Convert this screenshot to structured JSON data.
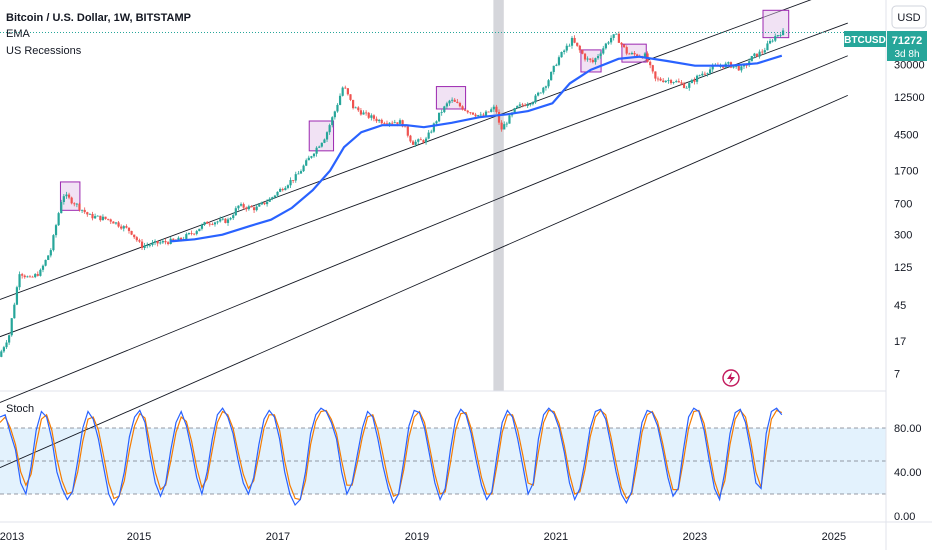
{
  "header": {
    "title": "Bitcoin / U.S. Dollar, 1W, BITSTAMP",
    "indicator_1": "EMA",
    "indicator_2": "US Recessions"
  },
  "price_axis": {
    "currency_button": "USD",
    "symbol_badge": "BTCUSD",
    "last_price": "71272",
    "countdown": "3d 8h",
    "colors": {
      "badge": "#26a69a",
      "ema": "#2962ff",
      "channel": "#131722"
    }
  },
  "oscillator": {
    "label": "Stoch",
    "ticks": [
      "80.00",
      "40.00",
      "0.00"
    ],
    "colors": {
      "k": "#2962ff",
      "d": "#f57c00",
      "band": "#e3f2fd"
    }
  },
  "chart_data": {
    "type": "candlestick",
    "y_scale": "log",
    "price_ticks": [
      30000,
      12500,
      4500,
      1700,
      700,
      300,
      125,
      45,
      17,
      7
    ],
    "x_ticks": [
      "2013",
      "2015",
      "2017",
      "2019",
      "2021",
      "2023",
      "2025"
    ],
    "ylim": [
      5,
      150000
    ],
    "xlim": [
      2013.0,
      2025.75
    ],
    "last_price": 71272,
    "recession_shading": [
      2020.1,
      2020.25
    ],
    "stoch": {
      "range": [
        0,
        100
      ],
      "upper_band": 80,
      "middle": 50,
      "lower_band": 20
    },
    "price_path": [
      [
        2013.0,
        11
      ],
      [
        2013.15,
        20
      ],
      [
        2013.3,
        110
      ],
      [
        2013.45,
        90
      ],
      [
        2013.6,
        110
      ],
      [
        2013.75,
        200
      ],
      [
        2013.92,
        900
      ],
      [
        2014.1,
        700
      ],
      [
        2014.3,
        500
      ],
      [
        2014.6,
        450
      ],
      [
        2014.9,
        330
      ],
      [
        2015.05,
        220
      ],
      [
        2015.3,
        240
      ],
      [
        2015.6,
        260
      ],
      [
        2015.8,
        320
      ],
      [
        2016.0,
        420
      ],
      [
        2016.3,
        440
      ],
      [
        2016.45,
        650
      ],
      [
        2016.7,
        610
      ],
      [
        2016.9,
        780
      ],
      [
        2017.1,
        1100
      ],
      [
        2017.3,
        1500
      ],
      [
        2017.5,
        2600
      ],
      [
        2017.7,
        4300
      ],
      [
        2017.85,
        9000
      ],
      [
        2017.96,
        17000
      ],
      [
        2018.1,
        9500
      ],
      [
        2018.3,
        7500
      ],
      [
        2018.5,
        6500
      ],
      [
        2018.8,
        6300
      ],
      [
        2018.95,
        3600
      ],
      [
        2019.15,
        3900
      ],
      [
        2019.35,
        8000
      ],
      [
        2019.5,
        11500
      ],
      [
        2019.7,
        9000
      ],
      [
        2019.95,
        7300
      ],
      [
        2020.15,
        9500
      ],
      [
        2020.22,
        5000
      ],
      [
        2020.45,
        9300
      ],
      [
        2020.7,
        11500
      ],
      [
        2020.9,
        19000
      ],
      [
        2021.05,
        35000
      ],
      [
        2021.25,
        58000
      ],
      [
        2021.45,
        35000
      ],
      [
        2021.55,
        32000
      ],
      [
        2021.8,
        61000
      ],
      [
        2021.88,
        66000
      ],
      [
        2022.05,
        40000
      ],
      [
        2022.3,
        38000
      ],
      [
        2022.45,
        20000
      ],
      [
        2022.7,
        19500
      ],
      [
        2022.9,
        16500
      ],
      [
        2023.1,
        23000
      ],
      [
        2023.3,
        28000
      ],
      [
        2023.5,
        30000
      ],
      [
        2023.7,
        26500
      ],
      [
        2023.85,
        37000
      ],
      [
        2024.0,
        43000
      ],
      [
        2024.15,
        62000
      ],
      [
        2024.25,
        71272
      ]
    ],
    "ema_path": [
      [
        2015.45,
        250
      ],
      [
        2015.8,
        265
      ],
      [
        2016.2,
        300
      ],
      [
        2016.6,
        380
      ],
      [
        2016.9,
        450
      ],
      [
        2017.2,
        620
      ],
      [
        2017.5,
        1000
      ],
      [
        2017.75,
        1700
      ],
      [
        2017.95,
        3200
      ],
      [
        2018.2,
        4800
      ],
      [
        2018.5,
        5800
      ],
      [
        2018.85,
        5800
      ],
      [
        2019.1,
        5500
      ],
      [
        2019.5,
        6200
      ],
      [
        2019.9,
        7200
      ],
      [
        2020.3,
        7800
      ],
      [
        2020.6,
        8500
      ],
      [
        2020.95,
        10500
      ],
      [
        2021.2,
        18000
      ],
      [
        2021.5,
        26000
      ],
      [
        2021.9,
        35000
      ],
      [
        2022.2,
        37000
      ],
      [
        2022.6,
        33000
      ],
      [
        2023.0,
        29000
      ],
      [
        2023.5,
        29000
      ],
      [
        2023.9,
        31000
      ],
      [
        2024.25,
        38000
      ]
    ],
    "channel_lines": [
      [
        [
          2013.0,
          52
        ],
        [
          2025.2,
          250000
        ]
      ],
      [
        [
          2013.0,
          19
        ],
        [
          2025.2,
          92000
        ]
      ],
      [
        [
          2013.0,
          3.2
        ],
        [
          2025.2,
          38000
        ]
      ],
      [
        [
          2013.0,
          0.55
        ],
        [
          2025.2,
          13000
        ]
      ]
    ],
    "highlight_boxes": [
      [
        2013.87,
        2014.15,
        580,
        1250
      ],
      [
        2017.45,
        2017.8,
        2900,
        6500
      ],
      [
        2019.28,
        2019.7,
        9000,
        16500
      ],
      [
        2021.36,
        2021.65,
        24500,
        44500
      ],
      [
        2021.95,
        2022.3,
        32000,
        52000
      ],
      [
        2023.98,
        2024.35,
        62000,
        130000
      ]
    ],
    "stoch_k": [
      90,
      92,
      75,
      60,
      30,
      20,
      45,
      78,
      95,
      90,
      70,
      40,
      25,
      15,
      22,
      50,
      80,
      95,
      88,
      70,
      45,
      20,
      10,
      18,
      40,
      72,
      90,
      96,
      85,
      55,
      30,
      18,
      30,
      60,
      85,
      95,
      82,
      60,
      35,
      20,
      40,
      70,
      92,
      98,
      90,
      75,
      50,
      30,
      20,
      35,
      65,
      88,
      96,
      90,
      70,
      40,
      20,
      10,
      15,
      40,
      75,
      92,
      98,
      95,
      85,
      70,
      40,
      20,
      30,
      55,
      80,
      95,
      90,
      70,
      45,
      25,
      12,
      20,
      50,
      82,
      96,
      94,
      80,
      55,
      30,
      15,
      25,
      60,
      88,
      97,
      92,
      75,
      50,
      28,
      15,
      22,
      55,
      85,
      96,
      90,
      70,
      45,
      20,
      30,
      70,
      92,
      98,
      93,
      80,
      58,
      30,
      15,
      25,
      50,
      80,
      95,
      97,
      88,
      65,
      40,
      20,
      12,
      22,
      55,
      85,
      96,
      94,
      82,
      60,
      35,
      18,
      25,
      60,
      90,
      98,
      95,
      78,
      50,
      25,
      15,
      40,
      75,
      94,
      97,
      85,
      60,
      30,
      25,
      75,
      95,
      98,
      92
    ],
    "stoch_d": [
      85,
      90,
      80,
      65,
      40,
      28,
      38,
      65,
      88,
      92,
      78,
      52,
      32,
      20,
      22,
      40,
      68,
      88,
      90,
      78,
      55,
      30,
      16,
      18,
      32,
      60,
      82,
      93,
      89,
      65,
      40,
      24,
      28,
      50,
      76,
      90,
      86,
      68,
      44,
      26,
      34,
      60,
      85,
      95,
      92,
      80,
      58,
      38,
      25,
      32,
      55,
      80,
      92,
      92,
      78,
      50,
      28,
      16,
      15,
      32,
      65,
      86,
      95,
      96,
      88,
      75,
      50,
      28,
      28,
      48,
      72,
      90,
      92,
      78,
      55,
      32,
      18,
      20,
      42,
      72,
      90,
      95,
      85,
      62,
      38,
      20,
      22,
      48,
      78,
      93,
      94,
      80,
      58,
      35,
      20,
      20,
      46,
      76,
      92,
      92,
      78,
      55,
      30,
      28,
      58,
      85,
      96,
      95,
      84,
      64,
      38,
      20,
      22,
      42,
      72,
      90,
      96,
      92,
      72,
      48,
      26,
      16,
      20,
      45,
      76,
      92,
      95,
      86,
      66,
      42,
      24,
      24,
      50,
      80,
      95,
      96,
      84,
      58,
      32,
      18,
      32,
      65,
      88,
      96,
      90,
      68,
      40,
      26,
      60,
      88,
      96,
      94
    ]
  }
}
